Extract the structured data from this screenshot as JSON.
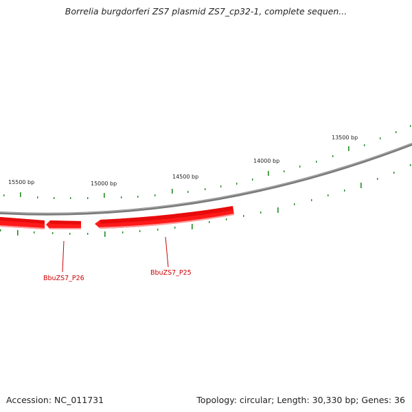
{
  "title": "Borrelia burgdorferi ZS7 plasmid ZS7_cp32-1, complete sequen...",
  "footer": {
    "accession": "Accession: NC_011731",
    "summary": "Topology: circular; Length: 30,330 bp; Genes: 36"
  },
  "ticks": [
    {
      "label": "13500 bp"
    },
    {
      "label": "14000 bp"
    },
    {
      "label": "14500 bp"
    },
    {
      "label": "15000 bp"
    },
    {
      "label": "15500 bp"
    }
  ],
  "genes": [
    {
      "name": "BbuZS7_P25"
    },
    {
      "name": "BbuZS7_P26"
    }
  ],
  "colors": {
    "backbone": "#808080",
    "gene": "#ff1a1a",
    "gene_dark": "#c80000",
    "gene_light": "#ff8080",
    "tick": "#228b22",
    "gene_label": "#cc0000"
  }
}
